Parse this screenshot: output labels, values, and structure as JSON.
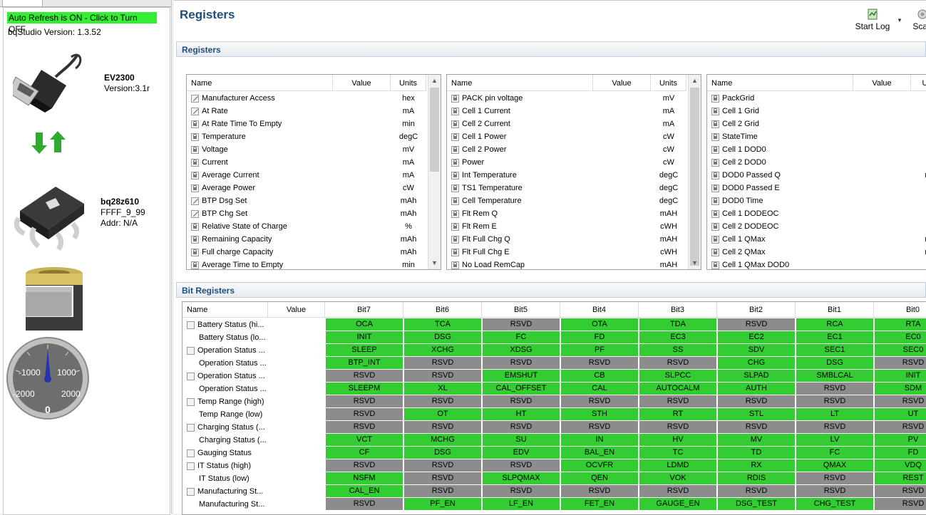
{
  "left": {
    "refresh_label": "Auto Refresh is ON - Click to Turn OFF",
    "version_label": "bqStudio Version:  1.3.52",
    "adapter": {
      "name": "EV2300",
      "version": "Version:3.1r"
    },
    "device": {
      "name": "bq28z610",
      "fw": "FFFF_9_99",
      "addr": "Addr: N/A"
    },
    "gauge": {
      "ticks": [
        "-1000",
        "1000",
        "-2000",
        "2000"
      ],
      "value": "0"
    }
  },
  "page_title": "Registers",
  "toolbar": {
    "start_log": "Start Log",
    "scan": "Scan"
  },
  "registers": {
    "title": "Registers",
    "columns": [
      "Name",
      "Value",
      "Units"
    ],
    "table1": [
      {
        "name": "Manufacturer Access",
        "units": "hex",
        "icon": "pen"
      },
      {
        "name": "At Rate",
        "units": "mA",
        "icon": "pen"
      },
      {
        "name": "At Rate Time To Empty",
        "units": "min",
        "icon": "lock"
      },
      {
        "name": "Temperature",
        "units": "degC",
        "icon": "lock"
      },
      {
        "name": "Voltage",
        "units": "mV",
        "icon": "lock"
      },
      {
        "name": "Current",
        "units": "mA",
        "icon": "lock"
      },
      {
        "name": "Average Current",
        "units": "mA",
        "icon": "lock"
      },
      {
        "name": "Average Power",
        "units": "cW",
        "icon": "lock"
      },
      {
        "name": "BTP Dsg Set",
        "units": "mAh",
        "icon": "pen"
      },
      {
        "name": "BTP Chg Set",
        "units": "mAh",
        "icon": "pen"
      },
      {
        "name": "Relative State of Charge",
        "units": "%",
        "icon": "lock"
      },
      {
        "name": "Remaining Capacity",
        "units": "mAh",
        "icon": "lock"
      },
      {
        "name": "Full charge Capacity",
        "units": "mAh",
        "icon": "lock"
      },
      {
        "name": "Average Time to Empty",
        "units": "min",
        "icon": "lock"
      }
    ],
    "table2": [
      {
        "name": "PACK pin voltage",
        "units": "mV",
        "icon": "lock"
      },
      {
        "name": "Cell 1 Current",
        "units": "mA",
        "icon": "lock"
      },
      {
        "name": "Cell 2 Current",
        "units": "mA",
        "icon": "lock"
      },
      {
        "name": "Cell 1 Power",
        "units": "cW",
        "icon": "lock"
      },
      {
        "name": "Cell 2 Power",
        "units": "cW",
        "icon": "lock"
      },
      {
        "name": "Power",
        "units": "cW",
        "icon": "lock"
      },
      {
        "name": "Int Temperature",
        "units": "degC",
        "icon": "lock"
      },
      {
        "name": "TS1 Temperature",
        "units": "degC",
        "icon": "lock"
      },
      {
        "name": "Cell Temperature",
        "units": "degC",
        "icon": "lock"
      },
      {
        "name": "Flt Rem Q",
        "units": "mAH",
        "icon": "lock"
      },
      {
        "name": "Flt Rem E",
        "units": "cWH",
        "icon": "lock"
      },
      {
        "name": "Flt Full Chg Q",
        "units": "mAH",
        "icon": "lock"
      },
      {
        "name": "Flt Full Chg E",
        "units": "cWH",
        "icon": "lock"
      },
      {
        "name": "No Load RemCap",
        "units": "mAH",
        "icon": "lock"
      }
    ],
    "table3": [
      {
        "name": "PackGrid",
        "units": "",
        "icon": "lock"
      },
      {
        "name": "Cell 1 Grid",
        "units": "",
        "icon": "lock"
      },
      {
        "name": "Cell 2 Grid",
        "units": "",
        "icon": "lock"
      },
      {
        "name": "StateTime",
        "units": "",
        "icon": "lock"
      },
      {
        "name": "Cell 1 DOD0",
        "units": "",
        "icon": "lock"
      },
      {
        "name": "Cell 2 DOD0",
        "units": "",
        "icon": "lock"
      },
      {
        "name": "DOD0 Passed Q",
        "units": "m",
        "icon": "lock"
      },
      {
        "name": "DOD0 Passed E",
        "units": "c",
        "icon": "lock"
      },
      {
        "name": "DOD0 Time",
        "units": "h",
        "icon": "lock"
      },
      {
        "name": "Cell 1 DODEOC",
        "units": "",
        "icon": "lock"
      },
      {
        "name": "Cell 2 DODEOC",
        "units": "",
        "icon": "lock"
      },
      {
        "name": "Cell 1 QMax",
        "units": "m",
        "icon": "lock"
      },
      {
        "name": "Cell 2 QMax",
        "units": "m",
        "icon": "lock"
      },
      {
        "name": "Cell 1 QMax DOD0",
        "units": "",
        "icon": "lock"
      }
    ],
    "table3_units_header": "U"
  },
  "bit_registers": {
    "title": "Bit Registers",
    "columns": [
      "Name",
      "Value",
      "Bit7",
      "Bit6",
      "Bit5",
      "Bit4",
      "Bit3",
      "Bit2",
      "Bit1",
      "Bit0"
    ],
    "rows": [
      {
        "name": "Battery Status (hi...",
        "lock": true,
        "bits": [
          [
            "OCA",
            1
          ],
          [
            "TCA",
            1
          ],
          [
            "RSVD",
            0
          ],
          [
            "OTA",
            1
          ],
          [
            "TDA",
            1
          ],
          [
            "RSVD",
            0
          ],
          [
            "RCA",
            1
          ],
          [
            "RTA",
            1
          ]
        ]
      },
      {
        "name": "Battery Status (lo...",
        "lock": false,
        "bits": [
          [
            "INIT",
            1
          ],
          [
            "DSG",
            1
          ],
          [
            "FC",
            1
          ],
          [
            "FD",
            1
          ],
          [
            "EC3",
            1
          ],
          [
            "EC2",
            1
          ],
          [
            "EC1",
            1
          ],
          [
            "EC0",
            1
          ]
        ]
      },
      {
        "name": "Operation Status ...",
        "lock": true,
        "bits": [
          [
            "SLEEP",
            1
          ],
          [
            "XCHG",
            1
          ],
          [
            "XDSG",
            1
          ],
          [
            "PF",
            1
          ],
          [
            "SS",
            1
          ],
          [
            "SDV",
            1
          ],
          [
            "SEC1",
            1
          ],
          [
            "SEC0",
            1
          ]
        ]
      },
      {
        "name": "Operation Status ...",
        "lock": false,
        "bits": [
          [
            "BTP_INT",
            1
          ],
          [
            "RSVD",
            0
          ],
          [
            "RSVD",
            0
          ],
          [
            "RSVD",
            0
          ],
          [
            "RSVD",
            0
          ],
          [
            "CHG",
            1
          ],
          [
            "DSG",
            1
          ],
          [
            "RSVD",
            0
          ]
        ]
      },
      {
        "name": "Operation Status ...",
        "lock": true,
        "bits": [
          [
            "RSVD",
            0
          ],
          [
            "RSVD",
            0
          ],
          [
            "EMSHUT",
            1
          ],
          [
            "CB",
            1
          ],
          [
            "SLPCC",
            1
          ],
          [
            "SLPAD",
            1
          ],
          [
            "SMBLCAL",
            1
          ],
          [
            "INIT",
            1
          ]
        ]
      },
      {
        "name": "Operation Status ...",
        "lock": false,
        "bits": [
          [
            "SLEEPM",
            1
          ],
          [
            "XL",
            1
          ],
          [
            "CAL_OFFSET",
            1
          ],
          [
            "CAL",
            1
          ],
          [
            "AUTOCALM",
            1
          ],
          [
            "AUTH",
            1
          ],
          [
            "RSVD",
            0
          ],
          [
            "SDM",
            1
          ]
        ]
      },
      {
        "name": "Temp Range (high)",
        "lock": true,
        "bits": [
          [
            "RSVD",
            0
          ],
          [
            "RSVD",
            0
          ],
          [
            "RSVD",
            0
          ],
          [
            "RSVD",
            0
          ],
          [
            "RSVD",
            0
          ],
          [
            "RSVD",
            0
          ],
          [
            "RSVD",
            0
          ],
          [
            "RSVD",
            0
          ]
        ]
      },
      {
        "name": "Temp Range (low)",
        "lock": false,
        "bits": [
          [
            "RSVD",
            0
          ],
          [
            "OT",
            1
          ],
          [
            "HT",
            1
          ],
          [
            "STH",
            1
          ],
          [
            "RT",
            1
          ],
          [
            "STL",
            1
          ],
          [
            "LT",
            1
          ],
          [
            "UT",
            1
          ]
        ]
      },
      {
        "name": "Charging Status (...",
        "lock": true,
        "bits": [
          [
            "RSVD",
            0
          ],
          [
            "RSVD",
            0
          ],
          [
            "RSVD",
            0
          ],
          [
            "RSVD",
            0
          ],
          [
            "RSVD",
            0
          ],
          [
            "RSVD",
            0
          ],
          [
            "RSVD",
            0
          ],
          [
            "RSVD",
            0
          ]
        ]
      },
      {
        "name": "Charging Status (...",
        "lock": false,
        "bits": [
          [
            "VCT",
            1
          ],
          [
            "MCHG",
            1
          ],
          [
            "SU",
            1
          ],
          [
            "IN",
            1
          ],
          [
            "HV",
            1
          ],
          [
            "MV",
            1
          ],
          [
            "LV",
            1
          ],
          [
            "PV",
            1
          ]
        ]
      },
      {
        "name": "Gauging Status",
        "lock": true,
        "bits": [
          [
            "CF",
            1
          ],
          [
            "DSG",
            1
          ],
          [
            "EDV",
            1
          ],
          [
            "BAL_EN",
            1
          ],
          [
            "TC",
            1
          ],
          [
            "TD",
            1
          ],
          [
            "FC",
            1
          ],
          [
            "FD",
            1
          ]
        ]
      },
      {
        "name": "IT Status (high)",
        "lock": true,
        "bits": [
          [
            "RSVD",
            0
          ],
          [
            "RSVD",
            0
          ],
          [
            "RSVD",
            0
          ],
          [
            "OCVFR",
            1
          ],
          [
            "LDMD",
            1
          ],
          [
            "RX",
            1
          ],
          [
            "QMAX",
            1
          ],
          [
            "VDQ",
            1
          ]
        ]
      },
      {
        "name": "IT Status (low)",
        "lock": false,
        "bits": [
          [
            "NSFM",
            1
          ],
          [
            "RSVD",
            0
          ],
          [
            "SLPQMAX",
            1
          ],
          [
            "QEN",
            1
          ],
          [
            "VOK",
            1
          ],
          [
            "RDIS",
            1
          ],
          [
            "RSVD",
            0
          ],
          [
            "REST",
            1
          ]
        ]
      },
      {
        "name": "Manufacturing St...",
        "lock": true,
        "bits": [
          [
            "CAL_EN",
            1
          ],
          [
            "RSVD",
            0
          ],
          [
            "RSVD",
            0
          ],
          [
            "RSVD",
            0
          ],
          [
            "RSVD",
            0
          ],
          [
            "RSVD",
            0
          ],
          [
            "RSVD",
            0
          ],
          [
            "RSVD",
            0
          ]
        ]
      },
      {
        "name": "Manufacturing St...",
        "lock": false,
        "bits": [
          [
            "RSVD",
            0
          ],
          [
            "PF_EN",
            1
          ],
          [
            "LF_EN",
            1
          ],
          [
            "FET_EN",
            1
          ],
          [
            "GAUGE_EN",
            1
          ],
          [
            "DSG_TEST",
            1
          ],
          [
            "CHG_TEST",
            1
          ],
          [
            "RSVD",
            0
          ]
        ]
      }
    ]
  },
  "colors": {
    "bit_on": "#33cc33",
    "bit_off": "#8c8c8c",
    "refresh_bg": "#33ee33",
    "title": "#1f4e79"
  }
}
